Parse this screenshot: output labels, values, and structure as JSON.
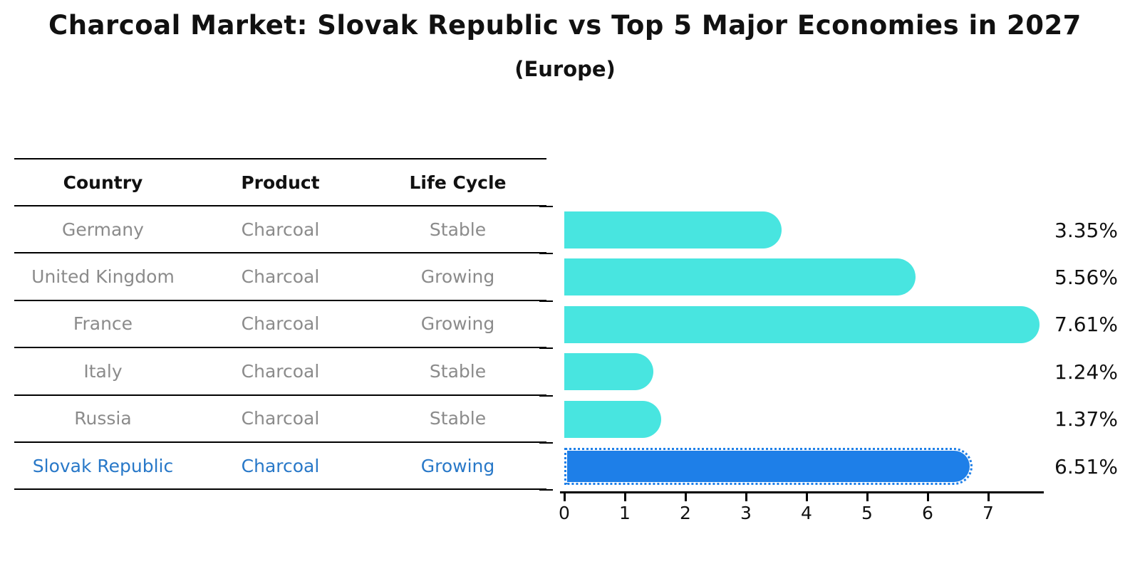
{
  "title": "Charcoal Market: Slovak Republic vs Top 5 Major Economies in 2027",
  "subtitle": "(Europe)",
  "table": {
    "headers": [
      "Country",
      "Product",
      "Life Cycle"
    ],
    "rows": [
      {
        "country": "Germany",
        "product": "Charcoal",
        "life_cycle": "Stable",
        "highlighted": false
      },
      {
        "country": "United Kingdom",
        "product": "Charcoal",
        "life_cycle": "Growing",
        "highlighted": false
      },
      {
        "country": "France",
        "product": "Charcoal",
        "life_cycle": "Growing",
        "highlighted": false
      },
      {
        "country": "Italy",
        "product": "Charcoal",
        "life_cycle": "Stable",
        "highlighted": false
      },
      {
        "country": "Russia",
        "product": "Charcoal",
        "life_cycle": "Stable",
        "highlighted": false
      },
      {
        "country": "Slovak Republic",
        "product": "Charcoal",
        "life_cycle": "Growing",
        "highlighted": true
      }
    ]
  },
  "chart_data": {
    "type": "bar",
    "orientation": "horizontal",
    "title": "Charcoal Market: Slovak Republic vs Top 5 Major Economies in 2027 (Europe)",
    "categories": [
      "Germany",
      "United Kingdom",
      "France",
      "Italy",
      "Russia",
      "Slovak Republic"
    ],
    "values": [
      3.35,
      5.56,
      7.61,
      1.24,
      1.37,
      6.51
    ],
    "value_labels": [
      "3.35%",
      "5.56%",
      "7.61%",
      "1.24%",
      "1.37%",
      "6.51%"
    ],
    "highlight_index": 5,
    "x_ticks": [
      0,
      1,
      2,
      3,
      4,
      5,
      6,
      7
    ],
    "xlim": [
      0,
      8
    ],
    "grid": false,
    "legend": "none",
    "colors": {
      "bar_default": "#48e5e0",
      "bar_highlight": "#1e7fe8",
      "highlight_row_text": "#2878c8",
      "row_text": "#8b8b8b",
      "axis_and_labels": "#111111"
    }
  }
}
